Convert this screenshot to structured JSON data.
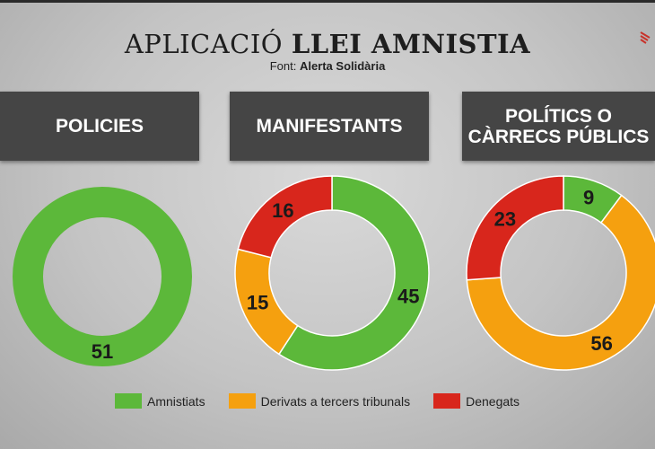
{
  "title_light": "APLICACIÓ",
  "title_bold": "LLEI AMNISTIA",
  "source_label": "Font:",
  "source_name": "Alerta Solidària",
  "colors": {
    "Amnistiats": "#5cb83a",
    "Derivats a tercers tribunals": "#f5a00f",
    "Denegats": "#d8261c"
  },
  "chart_data": [
    {
      "type": "pie",
      "title": "POLICIES",
      "categories": [
        "Amnistiats",
        "Derivats a tercers tribunals",
        "Denegats"
      ],
      "values": [
        51,
        0,
        0
      ]
    },
    {
      "type": "pie",
      "title": "MANIFESTANTS",
      "categories": [
        "Amnistiats",
        "Derivats a tercers tribunals",
        "Denegats"
      ],
      "values": [
        45,
        15,
        16
      ]
    },
    {
      "type": "pie",
      "title": "POLÍTICS O CÀRRECS PÚBLICS",
      "categories": [
        "Amnistiats",
        "Derivats a tercers tribunals",
        "Denegats"
      ],
      "values": [
        9,
        56,
        23
      ]
    }
  ],
  "legend": [
    "Amnistiats",
    "Derivats a tercers tribunals",
    "Denegats"
  ]
}
